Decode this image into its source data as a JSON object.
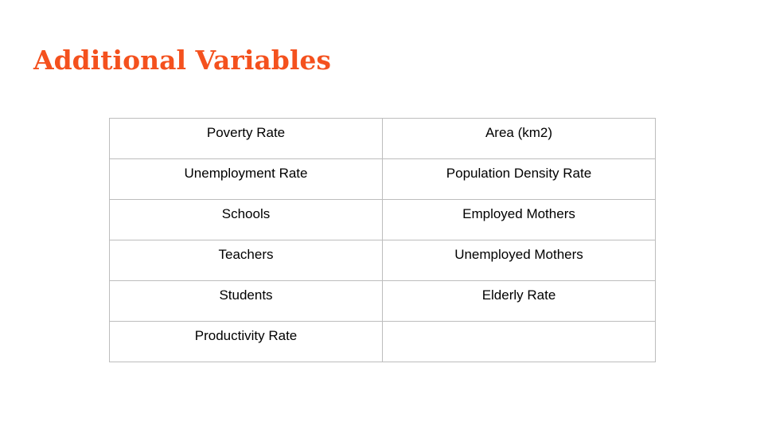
{
  "slide": {
    "title": "Additional Variables",
    "accent_color": "#f4511e"
  },
  "table": {
    "rows": [
      [
        "Poverty Rate",
        "Area (km2)"
      ],
      [
        "Unemployment Rate",
        "Population Density Rate"
      ],
      [
        "Schools",
        "Employed Mothers"
      ],
      [
        "Teachers",
        "Unemployed Mothers"
      ],
      [
        "Students",
        "Elderly Rate"
      ],
      [
        "Productivity Rate",
        ""
      ]
    ]
  }
}
